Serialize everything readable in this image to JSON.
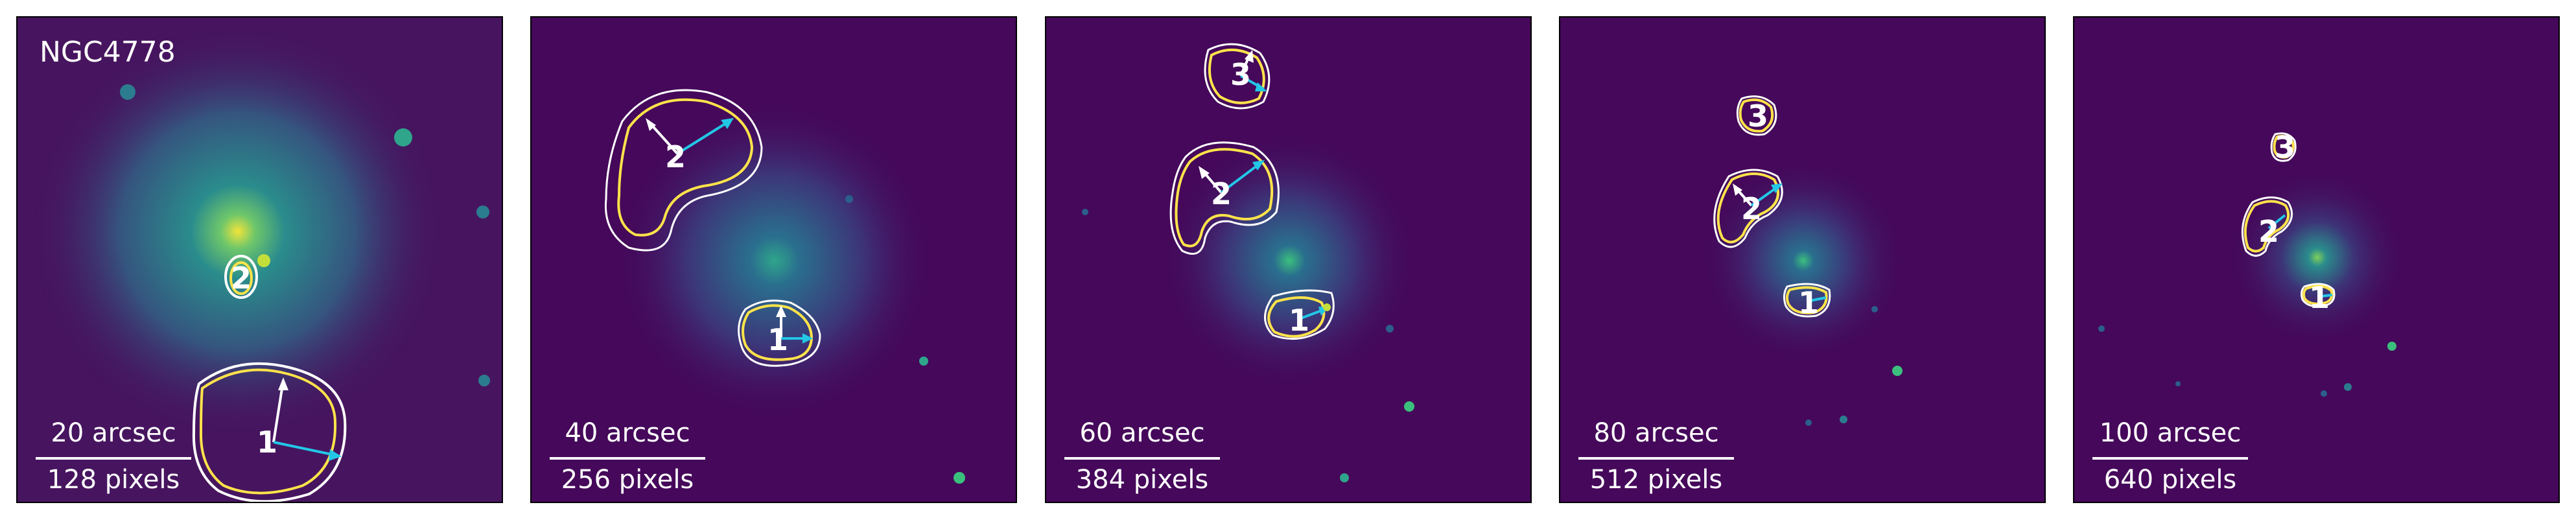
{
  "panels": [
    {
      "title": "NGC4778",
      "scale_top": "20 arcsec",
      "scale_bottom": "128 pixels",
      "labels": [
        "1",
        "2"
      ]
    },
    {
      "title": "",
      "scale_top": "40 arcsec",
      "scale_bottom": "256 pixels",
      "labels": [
        "1",
        "2"
      ]
    },
    {
      "title": "",
      "scale_top": "60 arcsec",
      "scale_bottom": "384 pixels",
      "labels": [
        "1",
        "2",
        "3"
      ]
    },
    {
      "title": "",
      "scale_top": "80 arcsec",
      "scale_bottom": "512 pixels",
      "labels": [
        "1",
        "2",
        "3"
      ]
    },
    {
      "title": "",
      "scale_top": "100 arcsec",
      "scale_bottom": "640 pixels",
      "labels": [
        "1",
        "2",
        "3"
      ]
    }
  ],
  "colors": {
    "background": "#45085a",
    "contour_outer": "#ffffff",
    "contour_inner": "#ffe34a",
    "arrow_cyan": "#22c7e6",
    "arrow_white": "#ffffff",
    "galaxy_core": "#f4e22a"
  }
}
